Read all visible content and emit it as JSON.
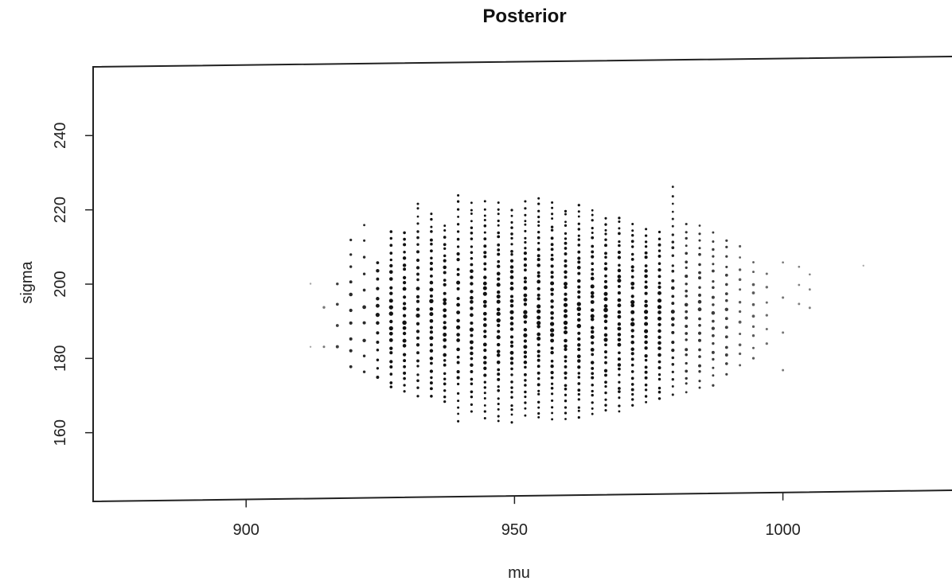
{
  "chart_data": {
    "type": "scatter",
    "title": "Posterior",
    "xlabel": "mu",
    "ylabel": "sigma",
    "xlim": [
      871.5,
      1031.5
    ],
    "ylim": [
      141.5,
      258.5
    ],
    "xticks": [
      "900",
      "950",
      "1000"
    ],
    "yticks": [
      "160",
      "180",
      "200",
      "220",
      "240"
    ],
    "grid": false,
    "marker_color": "#111111",
    "columns": [
      {
        "mu": 912.0,
        "sigma_lo": 183,
        "sigma_hi": 200,
        "n": 2,
        "weight": 0.15
      },
      {
        "mu": 914.5,
        "sigma_lo": 183,
        "sigma_hi": 194,
        "n": 2,
        "weight": 0.4
      },
      {
        "mu": 917.0,
        "sigma_lo": 183,
        "sigma_hi": 200,
        "n": 4,
        "weight": 0.7
      },
      {
        "mu": 919.5,
        "sigma_lo": 178,
        "sigma_hi": 212,
        "n": 10,
        "weight": 0.8
      },
      {
        "mu": 922.0,
        "sigma_lo": 176,
        "sigma_hi": 216,
        "n": 10,
        "weight": 0.8
      },
      {
        "mu": 924.5,
        "sigma_lo": 175,
        "sigma_hi": 206,
        "n": 14,
        "weight": 0.9
      },
      {
        "mu": 927.0,
        "sigma_lo": 172,
        "sigma_hi": 214,
        "n": 24,
        "weight": 0.95
      },
      {
        "mu": 929.5,
        "sigma_lo": 171,
        "sigma_hi": 214,
        "n": 26,
        "weight": 1.0
      },
      {
        "mu": 932.0,
        "sigma_lo": 170,
        "sigma_hi": 222,
        "n": 28,
        "weight": 0.9
      },
      {
        "mu": 934.5,
        "sigma_lo": 170,
        "sigma_hi": 219,
        "n": 30,
        "weight": 1.0
      },
      {
        "mu": 937.0,
        "sigma_lo": 168,
        "sigma_hi": 216,
        "n": 30,
        "weight": 0.95
      },
      {
        "mu": 939.5,
        "sigma_lo": 163,
        "sigma_hi": 224,
        "n": 32,
        "weight": 1.0
      },
      {
        "mu": 942.0,
        "sigma_lo": 166,
        "sigma_hi": 222,
        "n": 34,
        "weight": 1.0
      },
      {
        "mu": 944.5,
        "sigma_lo": 164,
        "sigma_hi": 222,
        "n": 36,
        "weight": 1.0
      },
      {
        "mu": 947.0,
        "sigma_lo": 163,
        "sigma_hi": 222,
        "n": 38,
        "weight": 1.0
      },
      {
        "mu": 949.5,
        "sigma_lo": 163,
        "sigma_hi": 220,
        "n": 38,
        "weight": 1.0
      },
      {
        "mu": 952.0,
        "sigma_lo": 165,
        "sigma_hi": 222,
        "n": 38,
        "weight": 1.0
      },
      {
        "mu": 954.5,
        "sigma_lo": 164,
        "sigma_hi": 223,
        "n": 40,
        "weight": 1.0
      },
      {
        "mu": 957.0,
        "sigma_lo": 164,
        "sigma_hi": 222,
        "n": 38,
        "weight": 1.0
      },
      {
        "mu": 959.5,
        "sigma_lo": 164,
        "sigma_hi": 220,
        "n": 38,
        "weight": 1.0
      },
      {
        "mu": 962.0,
        "sigma_lo": 164,
        "sigma_hi": 221,
        "n": 38,
        "weight": 1.0
      },
      {
        "mu": 964.5,
        "sigma_lo": 165,
        "sigma_hi": 220,
        "n": 36,
        "weight": 1.0
      },
      {
        "mu": 967.0,
        "sigma_lo": 166,
        "sigma_hi": 218,
        "n": 34,
        "weight": 1.0
      },
      {
        "mu": 969.5,
        "sigma_lo": 166,
        "sigma_hi": 218,
        "n": 34,
        "weight": 1.0
      },
      {
        "mu": 972.0,
        "sigma_lo": 167,
        "sigma_hi": 216,
        "n": 32,
        "weight": 1.0
      },
      {
        "mu": 974.5,
        "sigma_lo": 168,
        "sigma_hi": 215,
        "n": 30,
        "weight": 0.95
      },
      {
        "mu": 977.0,
        "sigma_lo": 169,
        "sigma_hi": 214,
        "n": 28,
        "weight": 0.95
      },
      {
        "mu": 979.5,
        "sigma_lo": 170,
        "sigma_hi": 226,
        "n": 28,
        "weight": 0.85
      },
      {
        "mu": 982.0,
        "sigma_lo": 171,
        "sigma_hi": 216,
        "n": 24,
        "weight": 0.75
      },
      {
        "mu": 984.5,
        "sigma_lo": 172,
        "sigma_hi": 216,
        "n": 22,
        "weight": 0.75
      },
      {
        "mu": 987.0,
        "sigma_lo": 173,
        "sigma_hi": 214,
        "n": 20,
        "weight": 0.7
      },
      {
        "mu": 989.5,
        "sigma_lo": 176,
        "sigma_hi": 212,
        "n": 16,
        "weight": 0.7
      },
      {
        "mu": 992.0,
        "sigma_lo": 178,
        "sigma_hi": 210,
        "n": 12,
        "weight": 0.55
      },
      {
        "mu": 994.5,
        "sigma_lo": 180,
        "sigma_hi": 206,
        "n": 10,
        "weight": 0.55
      },
      {
        "mu": 997.0,
        "sigma_lo": 184,
        "sigma_hi": 203,
        "n": 6,
        "weight": 0.45
      },
      {
        "mu": 1000.0,
        "sigma_lo": 177,
        "sigma_hi": 206,
        "n": 4,
        "weight": 0.4
      },
      {
        "mu": 1003.0,
        "sigma_lo": 195,
        "sigma_hi": 205,
        "n": 3,
        "weight": 0.35
      },
      {
        "mu": 1005.0,
        "sigma_lo": 194,
        "sigma_hi": 203,
        "n": 3,
        "weight": 0.35
      },
      {
        "mu": 1015.0,
        "sigma_lo": 205,
        "sigma_hi": 205,
        "n": 1,
        "weight": 0.15
      }
    ]
  }
}
